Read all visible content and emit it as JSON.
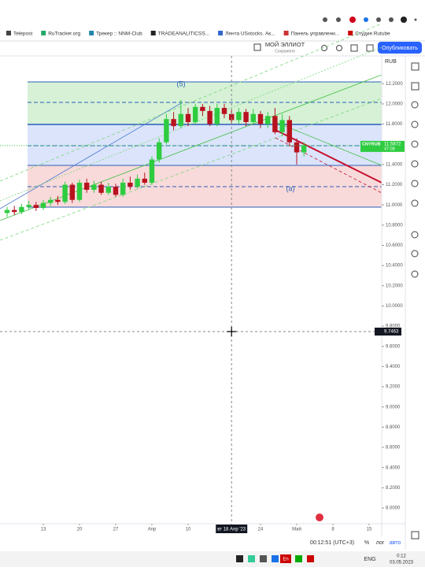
{
  "browser": {
    "bookmarks": [
      "Telepost",
      "RuTracker.org",
      "Трекер :: NNM-Club",
      "TRADEANALITICSS...",
      "Лента USstocks. Ак...",
      "Панель управлени...",
      "Студия Rutube"
    ]
  },
  "toolbar": {
    "layout_name": "МОЙ ЭЛЛИОТ",
    "save_status": "Сохранено",
    "publish": "Опубликовать"
  },
  "chart_data": {
    "type": "candlestick",
    "currency": "RUB",
    "open": [
      10.92,
      10.95,
      10.93,
      10.98,
      11.0,
      10.97,
      11.02,
      11.05,
      11.03,
      11.2,
      11.05,
      11.22,
      11.15,
      11.2,
      11.12,
      11.18,
      11.1,
      11.22,
      11.18,
      11.26,
      11.22,
      11.45,
      11.62,
      11.85,
      11.78,
      11.9,
      11.82,
      11.97,
      11.93,
      11.8,
      11.96,
      11.9,
      11.84,
      11.92,
      11.82,
      11.9,
      11.8,
      11.88,
      11.72,
      11.84,
      11.62,
      11.52
    ],
    "high": [
      10.98,
      10.99,
      11.01,
      11.04,
      11.03,
      11.05,
      11.08,
      11.09,
      11.23,
      11.22,
      11.25,
      11.26,
      11.24,
      11.23,
      11.22,
      11.21,
      11.26,
      11.28,
      11.3,
      11.32,
      11.48,
      11.66,
      11.9,
      11.92,
      12.04,
      11.96,
      12.0,
      12.0,
      11.98,
      12.0,
      12.0,
      11.94,
      11.96,
      11.95,
      11.95,
      11.93,
      11.92,
      11.96,
      11.9,
      11.88,
      11.66,
      11.62
    ],
    "low": [
      10.88,
      10.9,
      10.91,
      10.95,
      10.94,
      10.95,
      10.99,
      11.0,
      11.01,
      11.02,
      11.03,
      11.12,
      11.12,
      11.1,
      11.1,
      11.08,
      11.08,
      11.15,
      11.16,
      11.2,
      11.2,
      11.42,
      11.6,
      11.74,
      11.76,
      11.78,
      11.8,
      11.88,
      11.78,
      11.78,
      11.86,
      11.8,
      11.8,
      11.78,
      11.8,
      11.76,
      11.76,
      11.7,
      11.68,
      11.58,
      11.4,
      11.48
    ],
    "close": [
      10.95,
      10.93,
      10.98,
      11.0,
      10.97,
      11.02,
      11.05,
      11.03,
      11.2,
      11.05,
      11.22,
      11.15,
      11.2,
      11.12,
      11.18,
      11.1,
      11.22,
      11.18,
      11.26,
      11.22,
      11.45,
      11.62,
      11.85,
      11.78,
      11.9,
      11.82,
      11.97,
      11.93,
      11.8,
      11.96,
      11.9,
      11.84,
      11.92,
      11.82,
      11.9,
      11.8,
      11.88,
      11.72,
      11.84,
      11.62,
      11.52,
      11.59
    ],
    "up_color": "#2ecc40",
    "down_color": "#b8121f",
    "ylim": [
      7.844,
      12.475
    ],
    "yticks": [
      {
        "value": 12.2,
        "label": "12.2000"
      },
      {
        "value": 12.0,
        "label": "12.0000"
      },
      {
        "value": 11.8,
        "label": "11.8000"
      },
      {
        "value": 11.4,
        "label": "11.4000"
      },
      {
        "value": 11.2,
        "label": "11.2000"
      },
      {
        "value": 11.0,
        "label": "11.0000"
      },
      {
        "value": 10.8,
        "label": "10.8000"
      },
      {
        "value": 10.6,
        "label": "10.6000"
      },
      {
        "value": 10.4,
        "label": "10.4000"
      },
      {
        "value": 10.2,
        "label": "10.2000"
      },
      {
        "value": 10.0,
        "label": "10.0000"
      },
      {
        "value": 9.8,
        "label": "9.8000"
      },
      {
        "value": 9.6,
        "label": "9.6000"
      },
      {
        "value": 9.4,
        "label": "9.4000"
      },
      {
        "value": 9.2,
        "label": "9.2000"
      },
      {
        "value": 9.0,
        "label": "9.0000"
      },
      {
        "value": 8.8,
        "label": "8.8000"
      },
      {
        "value": 8.6,
        "label": "8.6000"
      },
      {
        "value": 8.4,
        "label": "8.4000"
      },
      {
        "value": 8.2,
        "label": "8.2000"
      },
      {
        "value": 8.0,
        "label": "8.0000"
      }
    ],
    "xlim": [
      -0.98,
      51.74
    ],
    "xticks": [
      {
        "value": 5,
        "label": "13"
      },
      {
        "value": 10,
        "label": "20"
      },
      {
        "value": 15,
        "label": "27"
      },
      {
        "value": 20,
        "label": "Апр"
      },
      {
        "value": 25,
        "label": "10"
      },
      {
        "value": 31,
        "label": "вт 18 Апр '23"
      },
      {
        "value": 35,
        "label": "24"
      },
      {
        "value": 40,
        "label": "Май"
      },
      {
        "value": 45,
        "label": "8"
      },
      {
        "value": 50,
        "label": "15"
      }
    ],
    "annotations": [
      "(5)",
      "(a)"
    ],
    "last_price": {
      "symbol": "CNYRUB",
      "value": 11.5872,
      "countdown": "47:08"
    },
    "crosshair": 9.7463
  },
  "status_bar": {
    "time": "00:12:51 (UTC+3)",
    "percent": "%",
    "log": "лог",
    "auto": "авто"
  },
  "taskbar": {
    "input": "En",
    "lang": "ENG",
    "clock": "0:12",
    "date": "03.05.2023"
  }
}
